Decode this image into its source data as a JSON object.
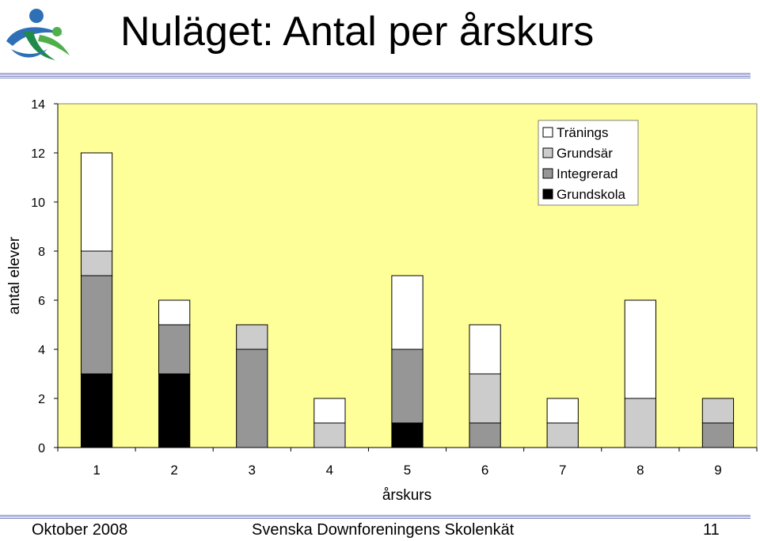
{
  "slide": {
    "title": "Nuläget: Antal per årskurs",
    "logo_icon": "downs-syndrome-association-logo-icon",
    "footer_left": "Oktober 2008",
    "footer_center": "Svenska Downforeningens Skolenkät",
    "footer_right": "11"
  },
  "colors": {
    "plot_background": "#ffff99",
    "Grundskola": "#000000",
    "Integrerad": "#969696",
    "Grundsär": "#cccccc",
    "Tränings": "#ffffff",
    "rule": "#7f86c2"
  },
  "chart_data": {
    "type": "bar",
    "stacked": true,
    "xlabel": "årskurs",
    "ylabel": "antal elever",
    "ylim": [
      0,
      14
    ],
    "yticks": [
      "0",
      "2",
      "4",
      "6",
      "8",
      "10",
      "12",
      "14"
    ],
    "categories": [
      "1",
      "2",
      "3",
      "4",
      "5",
      "6",
      "7",
      "8",
      "9"
    ],
    "legend_position": "top-right",
    "series": [
      {
        "name": "Grundskola",
        "values": [
          3,
          3,
          0,
          0,
          1,
          0,
          0,
          0,
          0
        ]
      },
      {
        "name": "Integrerad",
        "values": [
          4,
          2,
          4,
          0,
          3,
          1,
          0,
          0,
          1
        ]
      },
      {
        "name": "Grundsär",
        "values": [
          1,
          0,
          1,
          1,
          0,
          2,
          1,
          2,
          1
        ]
      },
      {
        "name": "Tränings",
        "values": [
          4,
          1,
          0,
          1,
          3,
          2,
          1,
          4,
          0
        ]
      }
    ]
  }
}
